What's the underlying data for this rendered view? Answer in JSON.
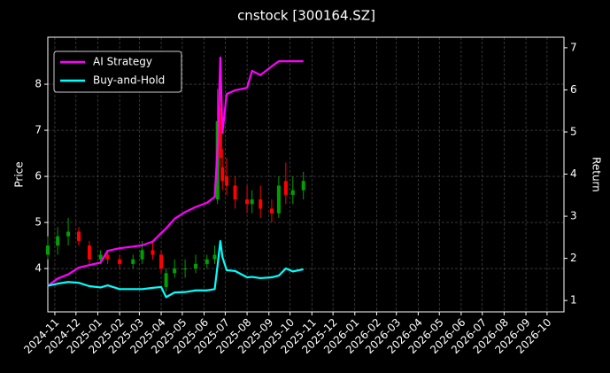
{
  "chart_data": {
    "type": "line",
    "title": "cnstock [300164.SZ]",
    "ylabel": "Price",
    "y2label": "Return",
    "x": [
      "2024-10-22",
      "2024-11-05",
      "2024-11-20",
      "2024-12-05",
      "2024-12-20",
      "2025-01-05",
      "2025-01-15",
      "2025-02-01",
      "2025-02-20",
      "2025-03-05",
      "2025-03-20",
      "2025-04-01",
      "2025-04-08",
      "2025-04-20",
      "2025-05-05",
      "2025-05-20",
      "2025-06-05",
      "2025-06-16",
      "2025-06-20",
      "2025-06-24",
      "2025-06-27",
      "2025-07-03",
      "2025-07-15",
      "2025-08-01",
      "2025-08-08",
      "2025-08-20",
      "2025-09-05",
      "2025-09-15",
      "2025-09-25",
      "2025-10-05",
      "2025-10-20"
    ],
    "series": [
      {
        "name": "AI Strategy",
        "color": "#ff00ff",
        "axis": "y2",
        "values": [
          1.35,
          1.52,
          1.62,
          1.78,
          1.84,
          1.9,
          2.18,
          2.24,
          2.28,
          2.31,
          2.4,
          2.6,
          2.71,
          2.94,
          3.1,
          3.22,
          3.32,
          3.46,
          4.6,
          6.77,
          4.98,
          5.9,
          5.99,
          6.05,
          6.45,
          6.35,
          6.56,
          6.68,
          6.68,
          6.68,
          6.68
        ]
      },
      {
        "name": "Buy-and-Hold",
        "color": "#00ffff",
        "axis": "y2",
        "values": [
          1.35,
          1.4,
          1.44,
          1.42,
          1.34,
          1.31,
          1.36,
          1.27,
          1.27,
          1.27,
          1.3,
          1.32,
          1.08,
          1.19,
          1.2,
          1.24,
          1.24,
          1.27,
          1.82,
          2.41,
          2.03,
          1.72,
          1.7,
          1.55,
          1.56,
          1.53,
          1.55,
          1.59,
          1.76,
          1.69,
          1.74
        ]
      }
    ],
    "ohlc": {
      "up_color": "#00a000",
      "down_color": "#ff0000",
      "open": [
        4.3,
        4.5,
        4.7,
        4.8,
        4.5,
        4.2,
        4.3,
        4.2,
        4.1,
        4.2,
        4.4,
        4.3,
        3.6,
        3.9,
        4.0,
        4.0,
        4.1,
        4.2,
        5.5,
        7.5,
        6.2,
        6.0,
        5.8,
        5.5,
        5.4,
        5.5,
        5.3,
        5.2,
        5.9,
        5.6,
        5.7
      ],
      "high": [
        4.7,
        4.9,
        5.1,
        4.9,
        4.6,
        4.4,
        4.4,
        4.3,
        4.3,
        4.6,
        4.6,
        4.4,
        4.0,
        4.2,
        4.2,
        4.3,
        4.3,
        4.5,
        7.9,
        8.0,
        6.6,
        6.4,
        6.0,
        5.8,
        5.7,
        5.8,
        5.5,
        6.0,
        6.3,
        6.0,
        6.1
      ],
      "low": [
        4.2,
        4.3,
        4.5,
        4.5,
        4.1,
        4.1,
        4.1,
        4.0,
        4.0,
        4.1,
        4.2,
        3.9,
        3.5,
        3.8,
        3.8,
        3.9,
        4.0,
        4.1,
        5.4,
        6.2,
        5.7,
        5.6,
        5.3,
        5.2,
        5.2,
        5.1,
        5.0,
        5.1,
        5.4,
        5.4,
        5.5
      ],
      "close": [
        4.5,
        4.7,
        4.8,
        4.6,
        4.2,
        4.3,
        4.2,
        4.1,
        4.2,
        4.4,
        4.3,
        4.0,
        3.9,
        4.0,
        4.0,
        4.1,
        4.2,
        4.3,
        7.2,
        6.4,
        5.9,
        5.8,
        5.5,
        5.4,
        5.5,
        5.3,
        5.2,
        5.8,
        5.6,
        5.7,
        5.9
      ]
    },
    "xlim": [
      "2024-10-22",
      "2026-10-25"
    ],
    "xticks": [
      "2024-11",
      "2024-12",
      "2025-01",
      "2025-02",
      "2025-03",
      "2025-04",
      "2025-05",
      "2025-06",
      "2025-07",
      "2025-08",
      "2025-09",
      "2025-10",
      "2025-11",
      "2025-12",
      "2026-01",
      "2026-02",
      "2026-03",
      "2026-04",
      "2026-05",
      "2026-06",
      "2026-07",
      "2026-08",
      "2026-09",
      "2026-10"
    ],
    "ylim": [
      3.06,
      9.02
    ],
    "yticks": [
      4,
      5,
      6,
      7,
      8
    ],
    "y2lim": [
      0.73,
      7.25
    ],
    "y2ticks": [
      1,
      2,
      3,
      4,
      5,
      6,
      7
    ],
    "grid": true,
    "legend": "upper left"
  }
}
